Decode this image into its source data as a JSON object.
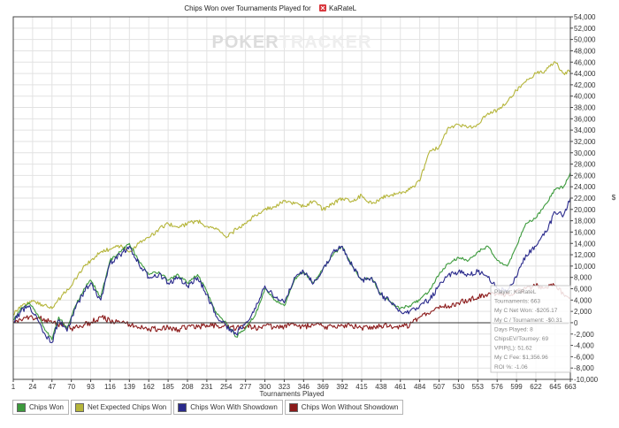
{
  "chart_data": {
    "type": "line",
    "title": "Chips Won over Tournaments Played for",
    "player_name": "KaRateL",
    "watermark": "POKERTRACKER",
    "watermark_parts": [
      "P",
      "OKER",
      "TRACKER"
    ],
    "xlabel": "Tournaments Played",
    "ylabel": "$",
    "xlim": [
      1,
      663
    ],
    "ylim": [
      -10000,
      54000
    ],
    "grid": true,
    "legend_position": "bottom-left",
    "x_ticks": [
      1,
      24,
      47,
      70,
      93,
      116,
      139,
      162,
      185,
      208,
      231,
      254,
      277,
      300,
      323,
      346,
      369,
      392,
      415,
      438,
      461,
      484,
      507,
      530,
      553,
      576,
      599,
      622,
      645,
      663
    ],
    "y_ticks": [
      -10000,
      -8000,
      -6000,
      -4000,
      -2000,
      0,
      2000,
      4000,
      6000,
      8000,
      10000,
      12000,
      14000,
      16000,
      18000,
      20000,
      22000,
      24000,
      26000,
      28000,
      30000,
      32000,
      34000,
      36000,
      38000,
      40000,
      42000,
      44000,
      46000,
      48000,
      50000,
      52000,
      54000
    ],
    "y_tick_labels": [
      "-10,000",
      "-8,000",
      "-6,000",
      "-4,000",
      "-2,000",
      "0",
      "2,000",
      "4,000",
      "6,000",
      "8,000",
      "10,000",
      "12,000",
      "14,000",
      "16,000",
      "18,000",
      "20,000",
      "22,000",
      "24,000",
      "26,000",
      "28,000",
      "30,000",
      "32,000",
      "34,000",
      "36,000",
      "38,000",
      "40,000",
      "42,000",
      "44,000",
      "46,000",
      "48,000",
      "50,000",
      "52,000",
      "54,000"
    ],
    "series": [
      {
        "name": "Net Expected Chips Won",
        "color": "#b5b53a",
        "x": [
          1,
          10,
          24,
          35,
          47,
          60,
          70,
          80,
          93,
          105,
          116,
          128,
          139,
          150,
          162,
          174,
          185,
          197,
          208,
          220,
          231,
          243,
          254,
          266,
          277,
          289,
          300,
          312,
          323,
          335,
          346,
          358,
          369,
          381,
          392,
          404,
          415,
          427,
          438,
          450,
          461,
          472,
          484,
          495,
          507,
          518,
          530,
          542,
          553,
          565,
          576,
          588,
          599,
          610,
          622,
          634,
          645,
          655,
          663
        ],
        "y": [
          1500,
          3000,
          3800,
          3200,
          2500,
          5000,
          6500,
          9000,
          11000,
          12500,
          13000,
          13500,
          12500,
          14000,
          15000,
          16500,
          17500,
          16800,
          17500,
          18000,
          17000,
          16500,
          15000,
          16500,
          17500,
          19000,
          20000,
          20500,
          21500,
          21000,
          20500,
          21500,
          20000,
          21000,
          22000,
          21500,
          22500,
          21000,
          22000,
          22500,
          23000,
          23500,
          25000,
          30000,
          31000,
          34500,
          35000,
          34500,
          35000,
          37000,
          37500,
          39000,
          41000,
          42500,
          44000,
          44500,
          46000,
          44000,
          44500
        ]
      },
      {
        "name": "Chips Won",
        "color": "#3c9a3c",
        "x": [
          1,
          10,
          20,
          30,
          40,
          47,
          55,
          65,
          75,
          85,
          93,
          105,
          116,
          128,
          139,
          150,
          162,
          174,
          185,
          197,
          208,
          220,
          231,
          243,
          254,
          266,
          277,
          289,
          300,
          312,
          323,
          335,
          346,
          358,
          369,
          381,
          392,
          404,
          415,
          427,
          438,
          450,
          461,
          472,
          484,
          495,
          507,
          518,
          530,
          542,
          553,
          565,
          576,
          588,
          599,
          610,
          622,
          634,
          645,
          655,
          663
        ],
        "y": [
          500,
          2500,
          3500,
          1500,
          -1500,
          -3000,
          1000,
          -1000,
          3000,
          6000,
          7500,
          4500,
          11000,
          12500,
          14000,
          11000,
          8500,
          9000,
          7500,
          8500,
          7000,
          8500,
          5500,
          1500,
          0,
          -2500,
          -1000,
          1500,
          6000,
          4000,
          3000,
          7500,
          9000,
          7000,
          9500,
          12000,
          13500,
          10000,
          7500,
          8000,
          5000,
          3500,
          2500,
          3000,
          4000,
          5500,
          8500,
          10500,
          11500,
          11000,
          12500,
          13500,
          11000,
          10000,
          13500,
          17500,
          18500,
          21000,
          23500,
          24000,
          26500
        ]
      },
      {
        "name": "Chips Won With Showdown",
        "color": "#2a2a8c",
        "x": [
          1,
          10,
          20,
          30,
          40,
          47,
          55,
          65,
          75,
          85,
          93,
          105,
          116,
          128,
          139,
          150,
          162,
          174,
          185,
          197,
          208,
          220,
          231,
          243,
          254,
          266,
          277,
          289,
          300,
          312,
          323,
          335,
          346,
          358,
          369,
          381,
          392,
          404,
          415,
          427,
          438,
          450,
          461,
          472,
          484,
          495,
          507,
          518,
          530,
          542,
          553,
          565,
          576,
          588,
          599,
          610,
          622,
          634,
          645,
          655,
          663
        ],
        "y": [
          0,
          2000,
          3000,
          500,
          -2500,
          -3500,
          500,
          -1500,
          2500,
          5500,
          7000,
          4000,
          10500,
          12000,
          13500,
          10500,
          8000,
          8500,
          7000,
          8000,
          6500,
          8000,
          5000,
          1000,
          -500,
          -2000,
          0,
          2500,
          6500,
          4500,
          3500,
          8000,
          9000,
          7000,
          9500,
          12500,
          13500,
          10000,
          7500,
          8000,
          5000,
          3500,
          2000,
          2000,
          3000,
          4000,
          6500,
          8500,
          9000,
          8500,
          9000,
          8000,
          6000,
          5500,
          8000,
          12000,
          13500,
          16000,
          19500,
          19000,
          22000
        ]
      },
      {
        "name": "Chips Won Without Showdown",
        "color": "#8b1a1a",
        "x": [
          1,
          10,
          20,
          30,
          40,
          47,
          60,
          70,
          80,
          93,
          105,
          116,
          128,
          139,
          150,
          162,
          174,
          185,
          197,
          208,
          220,
          231,
          243,
          254,
          266,
          277,
          289,
          300,
          312,
          323,
          335,
          346,
          358,
          369,
          381,
          392,
          404,
          415,
          427,
          438,
          450,
          461,
          472,
          484,
          495,
          507,
          518,
          530,
          542,
          553,
          565,
          576,
          588,
          599,
          610,
          622,
          634,
          645,
          655,
          663
        ],
        "y": [
          200,
          500,
          1000,
          800,
          500,
          0,
          -500,
          -1000,
          -500,
          0,
          1000,
          300,
          0,
          -300,
          -800,
          -1000,
          -1200,
          -800,
          -1200,
          -600,
          -800,
          -400,
          -600,
          -500,
          -1000,
          -700,
          -900,
          -500,
          -800,
          -600,
          -500,
          -700,
          -500,
          -600,
          -800,
          -500,
          -600,
          -900,
          -700,
          -500,
          -600,
          -700,
          -500,
          1000,
          1500,
          2500,
          3000,
          3500,
          4000,
          4500,
          5000,
          5200,
          5000,
          5500,
          6000,
          6500,
          6300,
          6500,
          5000,
          4500
        ]
      }
    ],
    "tooltip": {
      "lines": [
        "Player: KaRateL",
        "Tournaments: 663",
        "My C Net Won: -$205.17",
        "My C / Tournament: -$0.31",
        "Days Played: 8",
        "ChipsEV/Tourney: 69",
        "VPIP(L): 51.62",
        "My C Fee: $1,356.96",
        "ROI %: -1.06"
      ]
    }
  },
  "legend": [
    {
      "label": "Chips Won",
      "color": "#3c9a3c"
    },
    {
      "label": "Net Expected Chips Won",
      "color": "#b5b53a"
    },
    {
      "label": "Chips Won With Showdown",
      "color": "#2a2a8c"
    },
    {
      "label": "Chips Won Without Showdown",
      "color": "#8b1a1a"
    }
  ]
}
